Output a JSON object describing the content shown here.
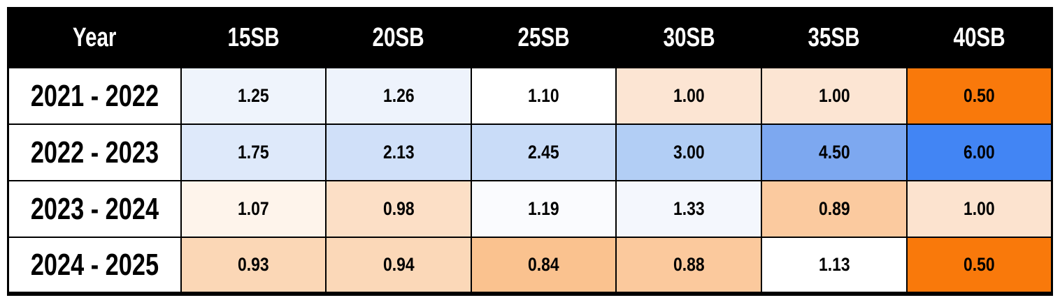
{
  "table": {
    "columns": [
      "Year",
      "15SB",
      "20SB",
      "25SB",
      "30SB",
      "35SB",
      "40SB"
    ],
    "rows": [
      {
        "label": "2021 - 2022",
        "cells": [
          {
            "text": "1.25",
            "bg": "#EFF4FC"
          },
          {
            "text": "1.26",
            "bg": "#EEF3FC"
          },
          {
            "text": "1.10",
            "bg": "#FFFFFF"
          },
          {
            "text": "1.00",
            "bg": "#FCE5D3"
          },
          {
            "text": "1.00",
            "bg": "#FCE5D3"
          },
          {
            "text": "0.50",
            "bg": "#F9790B"
          }
        ]
      },
      {
        "label": "2022 - 2023",
        "cells": [
          {
            "text": "1.75",
            "bg": "#DEE9FA"
          },
          {
            "text": "2.13",
            "bg": "#D0E0F9"
          },
          {
            "text": "2.45",
            "bg": "#C9DCF8"
          },
          {
            "text": "3.00",
            "bg": "#B2CEF5"
          },
          {
            "text": "4.50",
            "bg": "#7DA8F0"
          },
          {
            "text": "6.00",
            "bg": "#4285F4"
          }
        ]
      },
      {
        "label": "2023 - 2024",
        "cells": [
          {
            "text": "1.07",
            "bg": "#FEF4EB"
          },
          {
            "text": "0.98",
            "bg": "#FCDFC6"
          },
          {
            "text": "1.19",
            "bg": "#FAFBFE"
          },
          {
            "text": "1.33",
            "bg": "#F4F7FD"
          },
          {
            "text": "0.89",
            "bg": "#FBCA9F"
          },
          {
            "text": "1.00",
            "bg": "#FCE3CF"
          }
        ]
      },
      {
        "label": "2024 - 2025",
        "cells": [
          {
            "text": "0.93",
            "bg": "#FBD7B6"
          },
          {
            "text": "0.94",
            "bg": "#FBD8B8"
          },
          {
            "text": "0.84",
            "bg": "#FAC28F"
          },
          {
            "text": "0.88",
            "bg": "#FBC99D"
          },
          {
            "text": "1.13",
            "bg": "#FFFFFF"
          },
          {
            "text": "0.50",
            "bg": "#F9790B"
          }
        ]
      }
    ]
  },
  "colors": {
    "header_bg": "#000000",
    "header_text": "#FFFFFF",
    "border": "#000000",
    "scale_low_orange": "#F9790B",
    "scale_mid_white": "#FFFFFF",
    "scale_high_blue": "#4285F4"
  },
  "chart_data": {
    "type": "heatmap",
    "title": "",
    "row_header_label": "Year",
    "columns": [
      "15SB",
      "20SB",
      "25SB",
      "30SB",
      "35SB",
      "40SB"
    ],
    "rows": [
      "2021 - 2022",
      "2022 - 2023",
      "2023 - 2024",
      "2024 - 2025"
    ],
    "values": [
      [
        1.25,
        1.26,
        1.1,
        1.0,
        1.0,
        0.5
      ],
      [
        1.75,
        2.13,
        2.45,
        3.0,
        4.5,
        6.0
      ],
      [
        1.07,
        0.98,
        1.19,
        1.33,
        0.89,
        1.0
      ],
      [
        0.93,
        0.94,
        0.84,
        0.88,
        1.13,
        0.5
      ]
    ],
    "value_range": [
      0.5,
      6.0
    ],
    "colorscale": {
      "low": "#F9790B",
      "mid": "#FFFFFF",
      "high": "#4285F4"
    },
    "legend": "none",
    "grid": "black cell borders"
  }
}
